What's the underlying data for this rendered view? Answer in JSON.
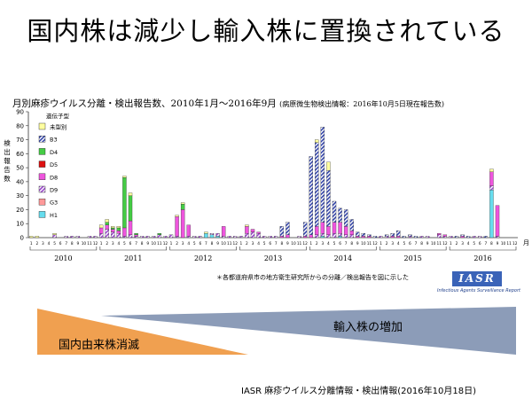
{
  "slide": {
    "title": "国内株は減少し輸入株に置換されている",
    "source": "IASR 麻疹ウイルス分離情報・検出情報(2016年10月18日)"
  },
  "chart_title": {
    "main": "月別麻疹ウイルス分離・検出報告数、2010年1月〜2016年9月",
    "note": "(病原微生物検出情報：2016年10月5日現在報告数)"
  },
  "footnote": "＊各都道府県市の地方衛生研究所からの分離／検出報告を図に示した",
  "iasr": {
    "logo": "IASR",
    "subtitle": "Infectious Agents Surveillance Report"
  },
  "triangles": {
    "domestic_label": "国内由来株消滅",
    "domestic_color": "#f0a050",
    "imported_label": "輸入株の増加",
    "imported_color": "#8c9cb8"
  },
  "chart_data": {
    "type": "bar",
    "stacked": true,
    "ylabel": "検出報告数",
    "x_unit": "月",
    "ylim": [
      0,
      90
    ],
    "yticks": [
      0,
      10,
      20,
      30,
      40,
      50,
      60,
      70,
      80,
      90
    ],
    "years": [
      "2010",
      "2011",
      "2012",
      "2013",
      "2014",
      "2015",
      "2016"
    ],
    "month_ticks": [
      "1",
      "2",
      "3",
      "4",
      "5",
      "6",
      "7",
      "8",
      "9",
      "10",
      "11",
      "12"
    ],
    "legend_title": "遺伝子型",
    "legend_position": "top-left",
    "series": [
      {
        "name": "未型別",
        "color": "#ffffa0"
      },
      {
        "name": "B3",
        "color": "#3344aa"
      },
      {
        "name": "D4",
        "color": "#44cc44"
      },
      {
        "name": "D5",
        "color": "#dd1111"
      },
      {
        "name": "D8",
        "color": "#ee55dd"
      },
      {
        "name": "D9",
        "color": "#9944cc"
      },
      {
        "name": "G3",
        "color": "#ff9999"
      },
      {
        "name": "H1",
        "color": "#66ddee"
      }
    ],
    "months": [
      {
        "未型別": 1
      },
      {
        "未型別": 1
      },
      {},
      {},
      {
        "D9": 2,
        "未型別": 1
      },
      {},
      {
        "D9": 1
      },
      {
        "D9": 1
      },
      {
        "D9": 1
      },
      {},
      {
        "D9": 1
      },
      {
        "D9": 1
      },
      {
        "D9": 3,
        "D8": 4,
        "未型別": 2
      },
      {
        "D9": 6,
        "D8": 3,
        "D4": 2,
        "未型別": 2
      },
      {
        "D9": 4,
        "D8": 2,
        "D4": 1,
        "未型別": 1
      },
      {
        "D9": 3,
        "D8": 2,
        "D4": 2,
        "未型別": 1
      },
      {
        "D8": 6,
        "D4": 36,
        "D9": 1,
        "未型別": 1
      },
      {
        "D8": 10,
        "D4": 18,
        "D9": 2,
        "未型別": 2
      },
      {
        "D8": 1,
        "D4": 1,
        "D9": 1
      },
      {
        "D9": 1
      },
      {
        "D9": 1
      },
      {
        "D9": 1
      },
      {
        "D9": 2,
        "D4": 1
      },
      {
        "D9": 1
      },
      {
        "D9": 2
      },
      {
        "D8": 14,
        "D9": 1,
        "未型別": 1
      },
      {
        "D8": 20,
        "D4": 4,
        "未型別": 1
      },
      {
        "D8": 8,
        "D9": 1
      },
      {
        "D9": 1
      },
      {
        "D9": 1
      },
      {
        "H1": 3,
        "未型別": 1
      },
      {
        "H1": 2,
        "D9": 1
      },
      {
        "D9": 2,
        "H1": 1
      },
      {
        "D8": 7,
        "D9": 1
      },
      {
        "D9": 1
      },
      {
        "D9": 1
      },
      {
        "D9": 1
      },
      {
        "D8": 5,
        "D9": 3,
        "未型別": 1
      },
      {
        "D9": 4,
        "D8": 2
      },
      {
        "D9": 3,
        "D8": 1
      },
      {
        "D9": 1
      },
      {
        "D9": 1
      },
      {
        "D9": 1
      },
      {
        "B3": 7,
        "D8": 1
      },
      {
        "B3": 9,
        "D8": 2
      },
      {},
      {
        "D9": 1
      },
      {
        "B3": 10,
        "D8": 1
      },
      {
        "B3": 56,
        "D8": 2
      },
      {
        "B3": 60,
        "D8": 6,
        "D9": 2,
        "未型別": 2
      },
      {
        "B3": 68,
        "D8": 8,
        "D9": 2,
        "H1": 1
      },
      {
        "B3": 40,
        "D8": 6,
        "D9": 2,
        "未型別": 6
      },
      {
        "B3": 15,
        "D8": 8,
        "D9": 3
      },
      {
        "B3": 10,
        "D8": 8,
        "D9": 2,
        "H1": 1
      },
      {
        "B3": 12,
        "D8": 6,
        "D9": 2
      },
      {
        "B3": 8,
        "D8": 3,
        "D9": 2
      },
      {
        "B3": 3,
        "D8": 1
      },
      {
        "B3": 2,
        "D8": 1
      },
      {
        "B3": 1,
        "D8": 1
      },
      {
        "B3": 1
      },
      {
        "D9": 1
      },
      {
        "D9": 1,
        "B3": 1
      },
      {
        "B3": 2,
        "D8": 1
      },
      {
        "B3": 4,
        "D8": 1
      },
      {
        "B3": 1
      },
      {
        "B3": 1,
        "D9": 1
      },
      {
        "B3": 1
      },
      {
        "D9": 1
      },
      {
        "D9": 1
      },
      {},
      {
        "D8": 1,
        "D9": 2
      },
      {
        "D8": 1,
        "D9": 1
      },
      {
        "D9": 1
      },
      {
        "B3": 1
      },
      {
        "B3": 1,
        "D8": 1
      },
      {
        "B3": 1
      },
      {
        "D9": 1
      },
      {
        "D9": 1
      },
      {
        "B3": 1
      },
      {
        "H1": 34,
        "D8": 10,
        "D9": 3,
        "未型別": 2
      },
      {
        "D8": 22,
        "D9": 1
      },
      {},
      {},
      {}
    ]
  }
}
